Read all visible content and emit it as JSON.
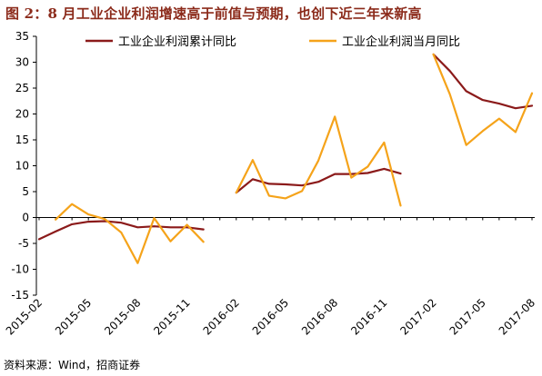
{
  "title": "图 2：8 月工业企业利润增速高于前值与预期，也创下近三年来新高",
  "source": "资料来源：Wind，招商证券",
  "colors": {
    "cumulative": "#8b1a1a",
    "monthly": "#f5a31a",
    "axis": "#000000"
  },
  "chart_data": {
    "type": "line",
    "x": [
      "2015-02",
      "2015-03",
      "2015-04",
      "2015-05",
      "2015-06",
      "2015-07",
      "2015-08",
      "2015-09",
      "2015-10",
      "2015-11",
      "2015-12",
      "2016-01",
      "2016-02",
      "2016-03",
      "2016-04",
      "2016-05",
      "2016-06",
      "2016-07",
      "2016-08",
      "2016-09",
      "2016-10",
      "2016-11",
      "2016-12",
      "2017-01",
      "2017-02",
      "2017-03",
      "2017-04",
      "2017-05",
      "2017-06",
      "2017-07",
      "2017-08"
    ],
    "x_tick_labels": [
      "2015-02",
      "2015-05",
      "2015-08",
      "2015-11",
      "2016-02",
      "2016-05",
      "2016-08",
      "2016-11",
      "2017-02",
      "2017-05",
      "2017-08"
    ],
    "ylim": [
      -15,
      35
    ],
    "y_ticks": [
      -15,
      -10,
      -5,
      0,
      5,
      10,
      15,
      20,
      25,
      30,
      35
    ],
    "grid": false,
    "legend_position": "top",
    "series": [
      {
        "name": "工业企业利润累计同比",
        "values": [
          -4.2,
          -2.7,
          -1.3,
          -0.8,
          -0.7,
          -1.0,
          -1.9,
          -1.7,
          -1.9,
          -1.9,
          -2.3,
          null,
          4.8,
          7.4,
          6.5,
          6.4,
          6.2,
          6.9,
          8.4,
          8.4,
          8.6,
          9.4,
          8.5,
          null,
          31.5,
          28.3,
          24.4,
          22.7,
          22.0,
          21.1,
          21.6
        ]
      },
      {
        "name": "工业企业利润当月同比",
        "values": [
          null,
          -0.4,
          2.6,
          0.6,
          -0.3,
          -2.9,
          -8.8,
          -0.1,
          -4.6,
          -1.4,
          -4.7,
          null,
          4.8,
          11.1,
          4.2,
          3.7,
          5.1,
          11.0,
          19.5,
          7.7,
          9.8,
          14.5,
          2.3,
          null,
          31.5,
          23.8,
          14.0,
          16.7,
          19.1,
          16.5,
          24.0
        ]
      }
    ]
  }
}
